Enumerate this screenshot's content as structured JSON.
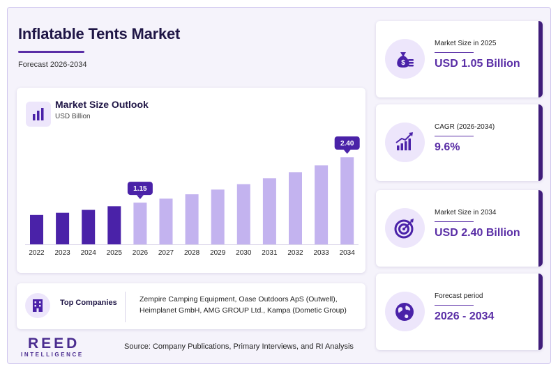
{
  "header": {
    "title": "Inflatable Tents Market",
    "subtitle": "Forecast 2026-2034"
  },
  "chart_data": {
    "type": "bar",
    "title": "Market Size Outlook",
    "ylabel": "USD Billion",
    "categories": [
      "2022",
      "2023",
      "2024",
      "2025",
      "2026",
      "2027",
      "2028",
      "2029",
      "2030",
      "2031",
      "2032",
      "2033",
      "2034"
    ],
    "values": [
      0.81,
      0.87,
      0.95,
      1.05,
      1.15,
      1.26,
      1.38,
      1.51,
      1.66,
      1.82,
      1.99,
      2.18,
      2.4
    ],
    "historical_color": "#4a22a8",
    "forecast_color": "#c3b3ef",
    "callouts": [
      {
        "category": "2026",
        "label": "1.15"
      },
      {
        "category": "2034",
        "label": "2.40"
      }
    ],
    "ylim": [
      0,
      2.6
    ],
    "grid": false,
    "legend": "none"
  },
  "companies": {
    "label": "Top Companies",
    "text": "Zempire Camping Equipment, Oase Outdoors ApS (Outwell), Heimplanet GmbH, AMG GROUP Ltd., Kampa (Dometic Group)"
  },
  "kpis": [
    {
      "label": "Market Size in 2025",
      "value": "USD 1.05 Billion",
      "icon": "money-bag-icon"
    },
    {
      "label": "CAGR (2026-2034)",
      "value": "9.6%",
      "icon": "growth-chart-icon"
    },
    {
      "label": "Market Size in 2034",
      "value": "USD 2.40 Billion",
      "icon": "target-icon"
    },
    {
      "label": "Forecast period",
      "value": "2026 - 2034",
      "icon": "globe-icon"
    }
  ],
  "footer": {
    "logo_main": "REED",
    "logo_sub": "INTELLIGENCE",
    "source": "Source: Company Publications, Primary Interviews, and RI Analysis"
  },
  "colors": {
    "accent": "#5a2ea6",
    "dark": "#3f1d7a"
  }
}
